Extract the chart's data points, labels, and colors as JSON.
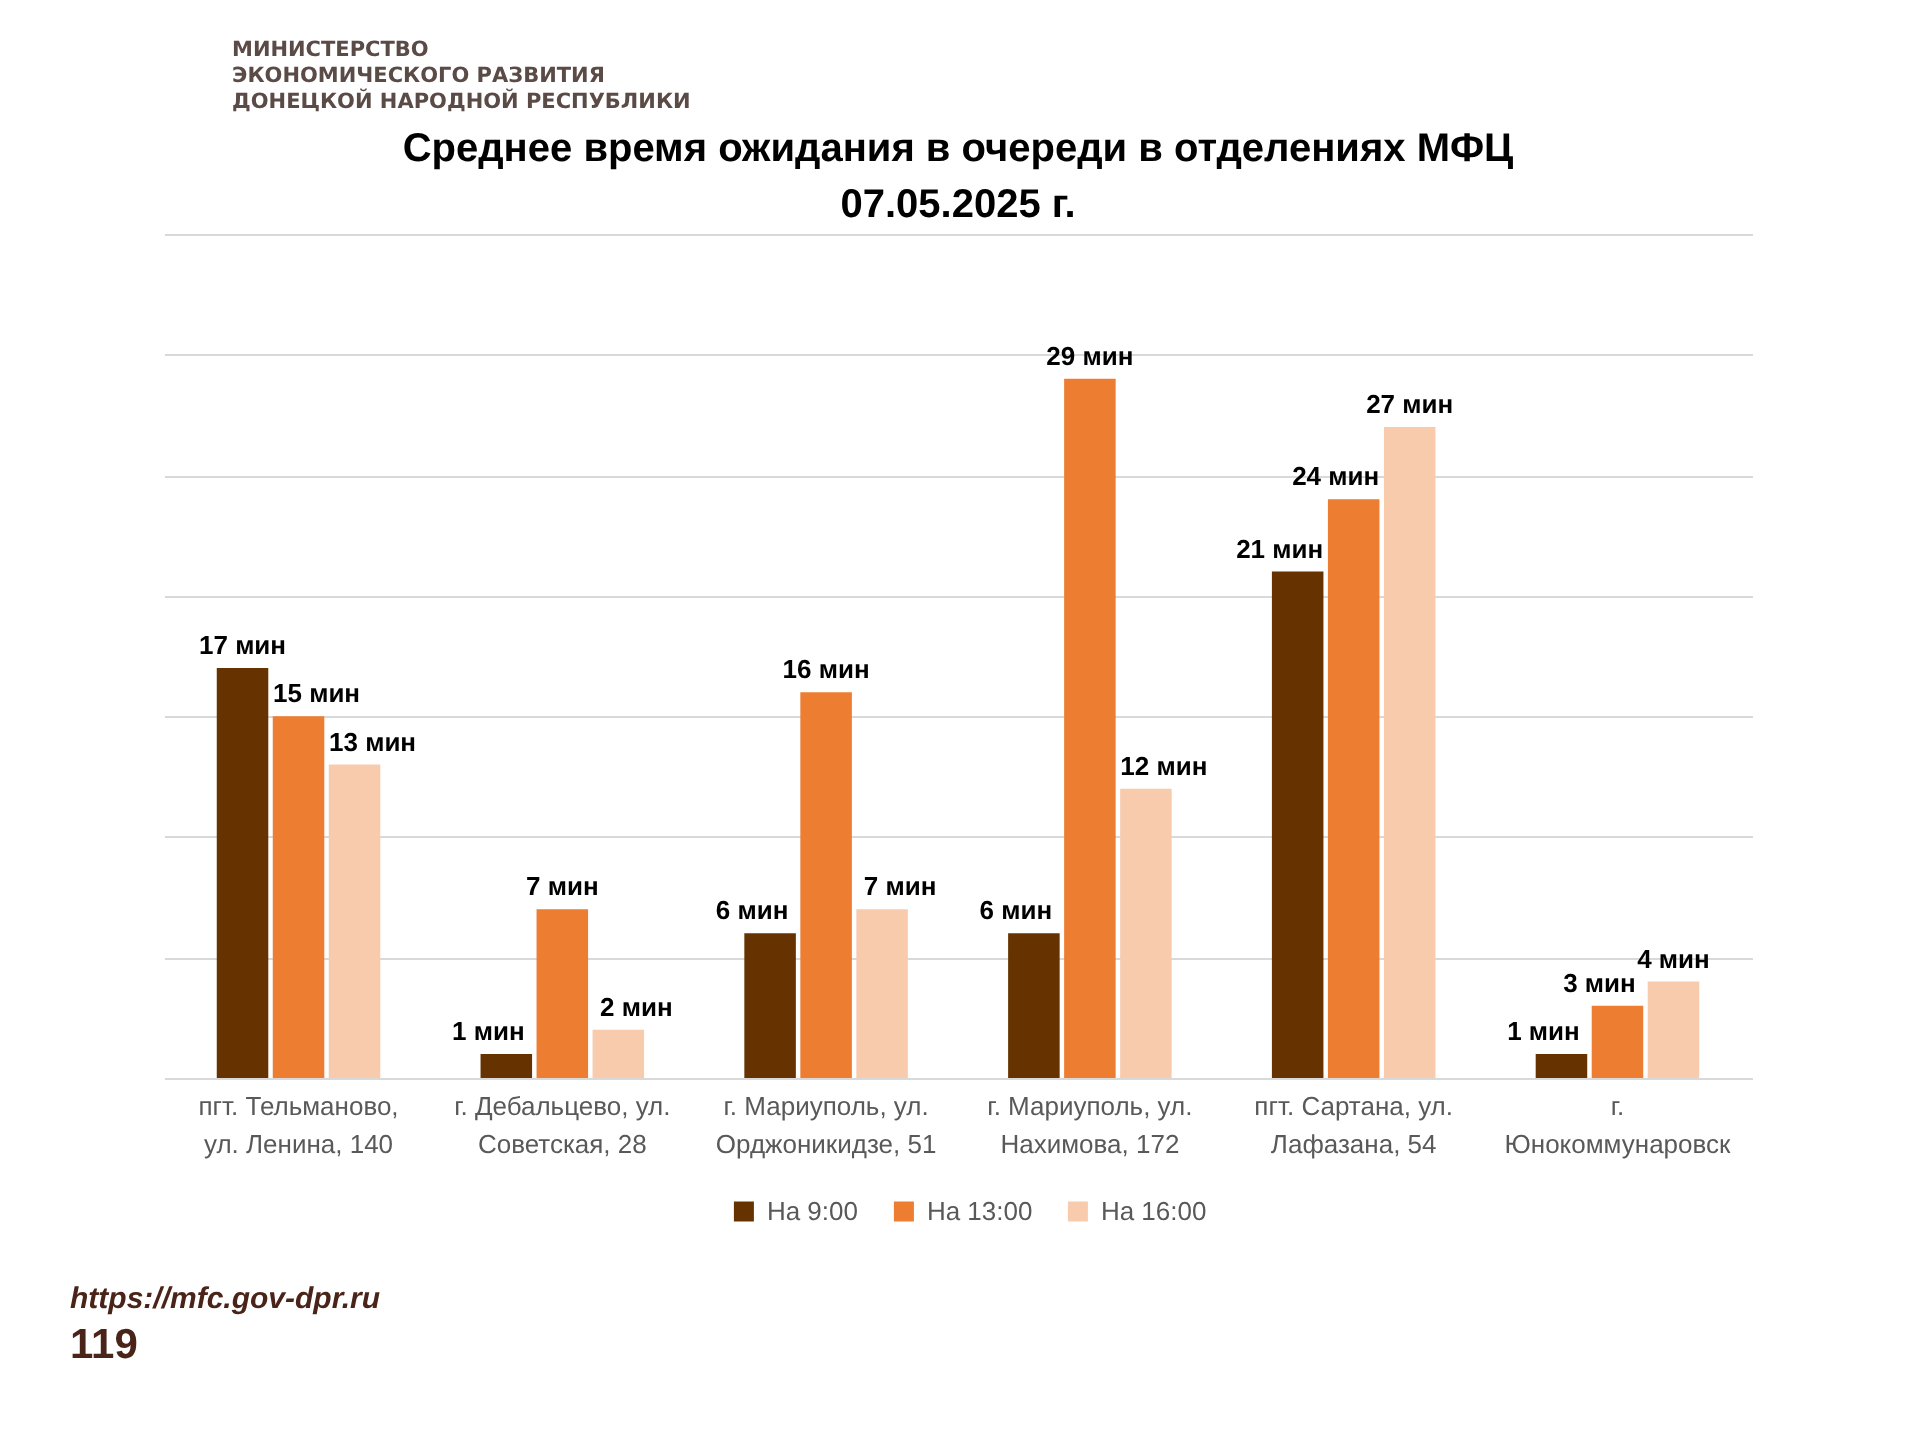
{
  "chart_data": {
    "type": "bar",
    "title": "Среднее время ожидания в очереди в отделениях МФЦ",
    "subtitle": "07.05.2025   г.",
    "categories": [
      "пгт. Тельманово, ул. Ленина, 140",
      "г. Дебальцево, ул. Советская, 28",
      "г. Мариуполь, ул. Орджоникидзе, 51",
      "г. Мариуполь, ул. Нахимова, 172",
      "пгт. Сартана, ул. Лафазана, 54",
      "г. Юнокоммунаровск"
    ],
    "series": [
      {
        "name": "На 9:00",
        "color": "#663300",
        "values": [
          17,
          1,
          6,
          6,
          21,
          1
        ],
        "value_labels": [
          "17 мин",
          "1 мин",
          "6 мин",
          "6 мин",
          "21 мин",
          "1 мин"
        ]
      },
      {
        "name": "На 13:00",
        "color": "#ed7d31",
        "values": [
          15,
          7,
          16,
          29,
          24,
          3
        ],
        "value_labels": [
          "15 мин",
          "7 мин",
          "16  мин",
          "29 мин",
          "24 мин",
          "3 мин"
        ]
      },
      {
        "name": "На 16:00",
        "color": "#f8cbad",
        "values": [
          13,
          2,
          7,
          12,
          27,
          4
        ],
        "value_labels": [
          "13 мин",
          "2 мин",
          "7 мин",
          "12 мин",
          "27 мин",
          "4 мин"
        ]
      }
    ],
    "ylim": [
      0,
      35
    ],
    "yticks": [
      {
        "value": 0,
        "label": null
      },
      {
        "value": 5,
        "label": null
      },
      {
        "value": 10,
        "label": null
      },
      {
        "value": 15,
        "label": null
      },
      {
        "value": 20,
        "label": null
      },
      {
        "value": 25,
        "label": null
      },
      {
        "value": 30,
        "label": null
      },
      {
        "value": 35,
        "label": null
      }
    ],
    "grid": "y",
    "tick_labels": "x",
    "legend": "bottom",
    "annotations": [
      "МИНИСТЕРСТВО",
      "ЭКОНОМИЧЕСКОГО РАЗВИТИЯ",
      "ДОНЕЦКОЙ НАРОДНОЙ РЕСПУБЛИКИ",
      "https://mfc.gov-dpr.ru",
      "119"
    ]
  }
}
